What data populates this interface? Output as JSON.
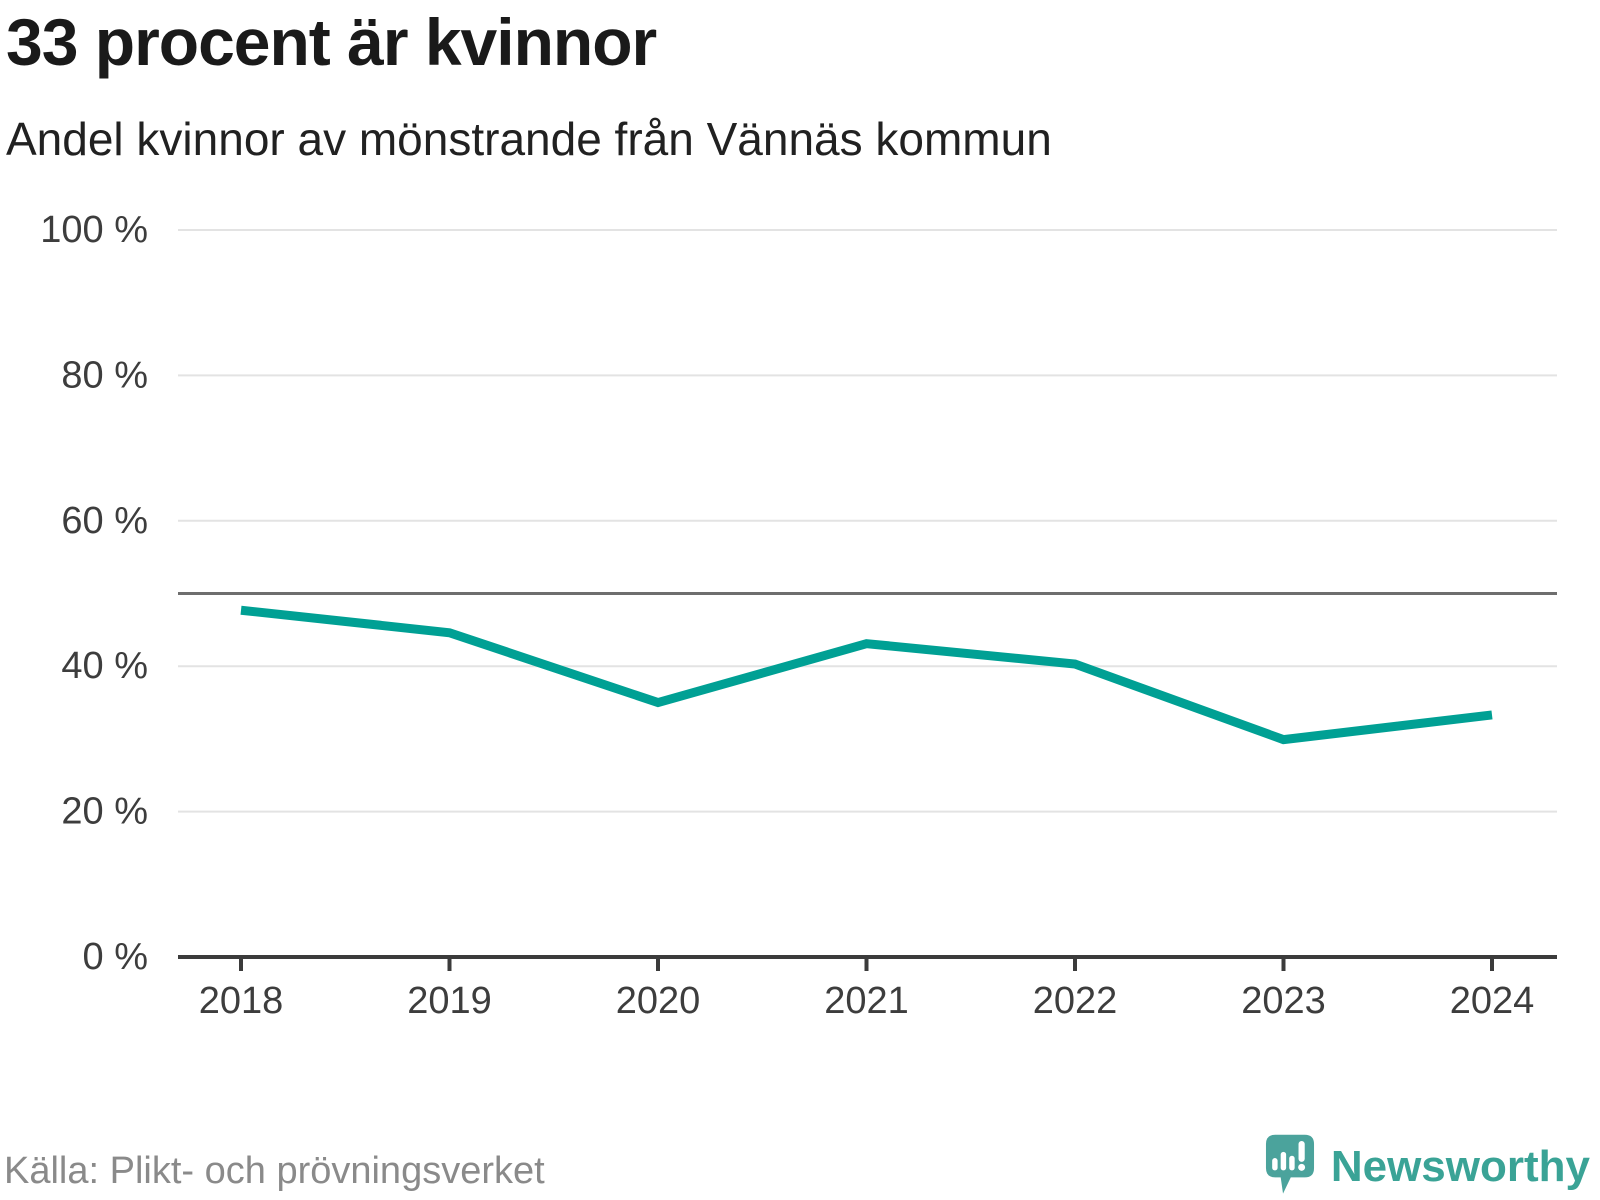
{
  "header": {
    "title": "33 procent är kvinnor",
    "subtitle": "Andel kvinnor av mönstrande från Vännäs kommun"
  },
  "chart_data": {
    "type": "line",
    "title": "33 procent är kvinnor",
    "subtitle": "Andel kvinnor av mönstrande från Vännäs kommun",
    "categories": [
      "2018",
      "2019",
      "2020",
      "2021",
      "2022",
      "2023",
      "2024"
    ],
    "series": [
      {
        "name": "Andel kvinnor av mönstrande",
        "values": [
          47.7,
          44.6,
          35.0,
          43.1,
          40.3,
          29.9,
          33.3
        ]
      }
    ],
    "unit": "%",
    "ylim": [
      0,
      100
    ],
    "yticks": [
      0,
      20,
      40,
      60,
      80,
      100
    ],
    "ytick_labels": [
      "0 %",
      "20 %",
      "40 %",
      "60 %",
      "80 %",
      "100 %"
    ],
    "grid": true,
    "legend_position": "none",
    "reference_line": {
      "value": 50
    },
    "line_color": "#00a094",
    "gridline_color": "#e3e3e3",
    "reference_line_color": "#6e6e6e",
    "axis_color": "#3b3b3b",
    "tick_label_color": "#3d3d3d"
  },
  "footer": {
    "source": "Källa: Plikt- och prövningsverket",
    "brand": "Newsworthy",
    "brand_color": "#3aa396",
    "brand_icon": "speech-bubble-bar-chart-icon",
    "brand_icon_color": "#4ba39c"
  }
}
